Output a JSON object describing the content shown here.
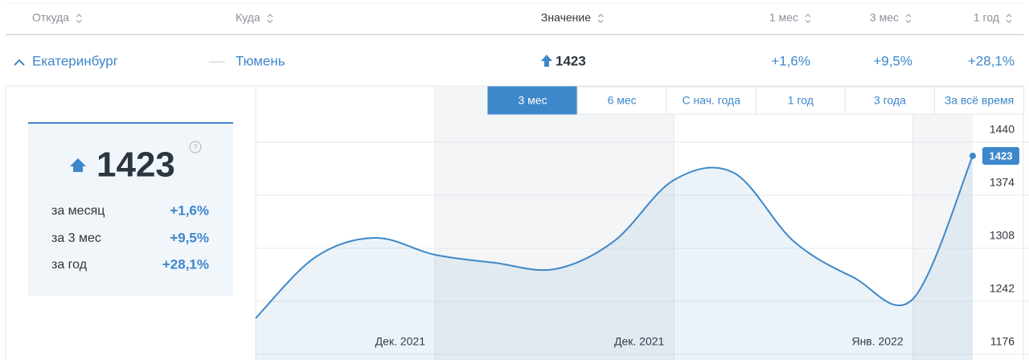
{
  "header": {
    "columns": [
      "Откуда",
      "Куда",
      "Значение",
      "1 мес",
      "3 мес",
      "1 год"
    ]
  },
  "row": {
    "from": "Екатеринбург",
    "to": "Тюмень",
    "value": "1423",
    "changes": [
      "+1,6%",
      "+9,5%",
      "+28,1%"
    ]
  },
  "card": {
    "help": "?",
    "labels": [
      "за месяц",
      "за 3 мес",
      "за год"
    ]
  },
  "tabs": {
    "items": [
      "3 мес",
      "6 мес",
      "С нач. года",
      "1 год",
      "3 года",
      "За всё время"
    ],
    "active": 0
  },
  "chart_data": {
    "type": "line",
    "categories": [
      null,
      null,
      null,
      "Дек. 2021",
      null,
      null,
      null,
      "Дек. 2021",
      null,
      null,
      null,
      "Янв. 2022",
      null
    ],
    "series": [
      {
        "name": "Значение",
        "color": "#3f88c8",
        "values": [
          1221,
          1297,
          1321,
          1300,
          1290,
          1282,
          1317,
          1393,
          1402,
          1317,
          1272,
          1245,
          1423
        ]
      }
    ],
    "ylim": [
      1176,
      1509
    ],
    "yticks": [
      1176,
      1242,
      1308,
      1374,
      1440
    ],
    "grid": true
  }
}
